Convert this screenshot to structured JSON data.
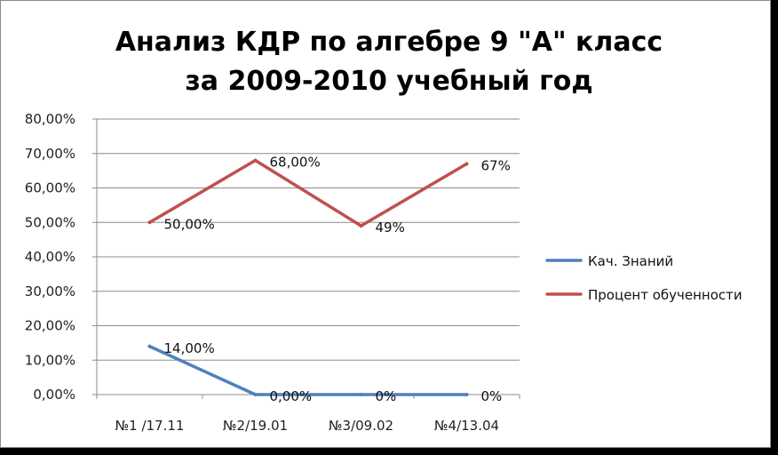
{
  "chart_data": {
    "type": "line",
    "title_lines": [
      "Анализ КДР по алгебре 9 \"А\" класс",
      "за 2009-2010 учебный год"
    ],
    "categories": [
      "№1 /17.11",
      "№2/19.01",
      "№3/09.02",
      "№4/13.04"
    ],
    "ylim": [
      0,
      80
    ],
    "ytick_values": [
      0,
      10,
      20,
      30,
      40,
      50,
      60,
      70,
      80
    ],
    "ytick_labels": [
      "0,00%",
      "10,00%",
      "20,00%",
      "30,00%",
      "40,00%",
      "50,00%",
      "60,00%",
      "70,00%",
      "80,00%"
    ],
    "grid": true,
    "legend_position": "right",
    "series": [
      {
        "name": "Кач. Знаний",
        "color": "#4f81bd",
        "values": [
          14,
          0,
          0,
          0
        ],
        "labels": [
          "14,00%",
          "0,00%",
          "0%",
          "0%"
        ]
      },
      {
        "name": "Процент обученности",
        "color": "#c0504d",
        "values": [
          50,
          68,
          49,
          67
        ],
        "labels": [
          "50,00%",
          "68,00%",
          "49%",
          "67%"
        ]
      }
    ]
  }
}
